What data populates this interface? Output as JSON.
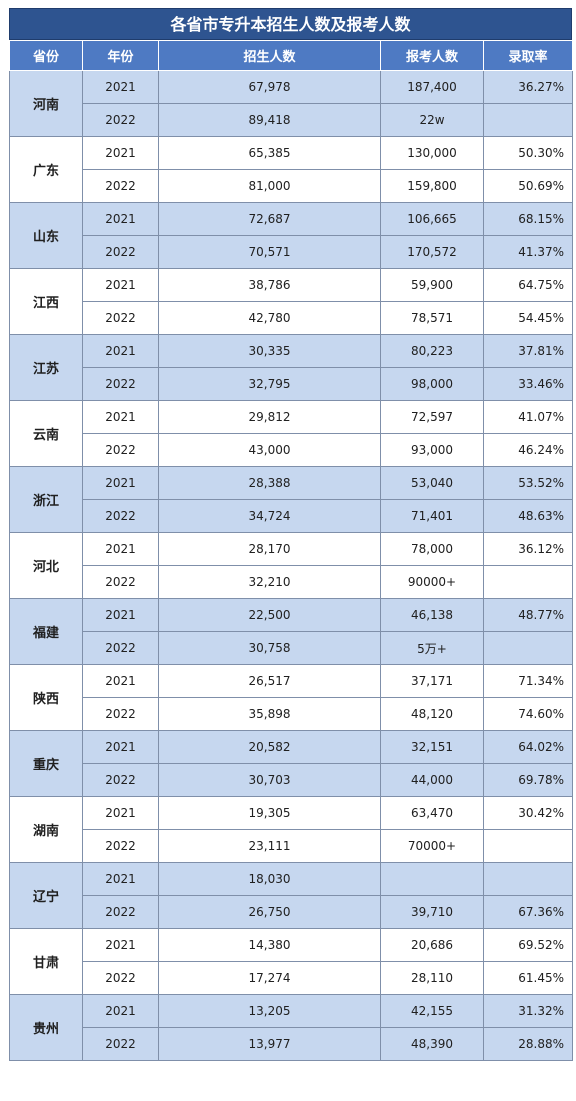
{
  "title": "各省市专升本招生人数及报考人数",
  "headers": [
    "省份",
    "年份",
    "招生人数",
    "报考人数",
    "录取率"
  ],
  "colors": {
    "title_bg": "#2e5490",
    "header_bg": "#4e7ac3",
    "shade_bg": "#c6d7ef"
  },
  "provinces": [
    {
      "name": "河南",
      "shaded": true,
      "rows": [
        {
          "year": "2021",
          "enrolled": "67,978",
          "applicants": "187,400",
          "rate": "36.27%"
        },
        {
          "year": "2022",
          "enrolled": "89,418",
          "applicants": "22w",
          "rate": ""
        }
      ]
    },
    {
      "name": "广东",
      "shaded": false,
      "rows": [
        {
          "year": "2021",
          "enrolled": "65,385",
          "applicants": "130,000",
          "rate": "50.30%"
        },
        {
          "year": "2022",
          "enrolled": "81,000",
          "applicants": "159,800",
          "rate": "50.69%"
        }
      ]
    },
    {
      "name": "山东",
      "shaded": true,
      "rows": [
        {
          "year": "2021",
          "enrolled": "72,687",
          "applicants": "106,665",
          "rate": "68.15%"
        },
        {
          "year": "2022",
          "enrolled": "70,571",
          "applicants": "170,572",
          "rate": "41.37%"
        }
      ]
    },
    {
      "name": "江西",
      "shaded": false,
      "rows": [
        {
          "year": "2021",
          "enrolled": "38,786",
          "applicants": "59,900",
          "rate": "64.75%"
        },
        {
          "year": "2022",
          "enrolled": "42,780",
          "applicants": "78,571",
          "rate": "54.45%"
        }
      ]
    },
    {
      "name": "江苏",
      "shaded": true,
      "rows": [
        {
          "year": "2021",
          "enrolled": "30,335",
          "applicants": "80,223",
          "rate": "37.81%"
        },
        {
          "year": "2022",
          "enrolled": "32,795",
          "applicants": "98,000",
          "rate": "33.46%"
        }
      ]
    },
    {
      "name": "云南",
      "shaded": false,
      "rows": [
        {
          "year": "2021",
          "enrolled": "29,812",
          "applicants": "72,597",
          "rate": "41.07%"
        },
        {
          "year": "2022",
          "enrolled": "43,000",
          "applicants": "93,000",
          "rate": "46.24%"
        }
      ]
    },
    {
      "name": "浙江",
      "shaded": true,
      "rows": [
        {
          "year": "2021",
          "enrolled": "28,388",
          "applicants": "53,040",
          "rate": "53.52%"
        },
        {
          "year": "2022",
          "enrolled": "34,724",
          "applicants": "71,401",
          "rate": "48.63%"
        }
      ]
    },
    {
      "name": "河北",
      "shaded": false,
      "rows": [
        {
          "year": "2021",
          "enrolled": "28,170",
          "applicants": "78,000",
          "rate": "36.12%"
        },
        {
          "year": "2022",
          "enrolled": "32,210",
          "applicants": "90000+",
          "rate": ""
        }
      ]
    },
    {
      "name": "福建",
      "shaded": true,
      "rows": [
        {
          "year": "2021",
          "enrolled": "22,500",
          "applicants": "46,138",
          "rate": "48.77%"
        },
        {
          "year": "2022",
          "enrolled": "30,758",
          "applicants": "5万+",
          "rate": ""
        }
      ]
    },
    {
      "name": "陕西",
      "shaded": false,
      "rows": [
        {
          "year": "2021",
          "enrolled": "26,517",
          "applicants": "37,171",
          "rate": "71.34%"
        },
        {
          "year": "2022",
          "enrolled": "35,898",
          "applicants": "48,120",
          "rate": "74.60%"
        }
      ]
    },
    {
      "name": "重庆",
      "shaded": true,
      "rows": [
        {
          "year": "2021",
          "enrolled": "20,582",
          "applicants": "32,151",
          "rate": "64.02%"
        },
        {
          "year": "2022",
          "enrolled": "30,703",
          "applicants": "44,000",
          "rate": "69.78%"
        }
      ]
    },
    {
      "name": "湖南",
      "shaded": false,
      "rows": [
        {
          "year": "2021",
          "enrolled": "19,305",
          "applicants": "63,470",
          "rate": "30.42%"
        },
        {
          "year": "2022",
          "enrolled": "23,111",
          "applicants": "70000+",
          "rate": ""
        }
      ]
    },
    {
      "name": "辽宁",
      "shaded": true,
      "rows": [
        {
          "year": "2021",
          "enrolled": "18,030",
          "applicants": "",
          "rate": ""
        },
        {
          "year": "2022",
          "enrolled": "26,750",
          "applicants": "39,710",
          "rate": "67.36%"
        }
      ]
    },
    {
      "name": "甘肃",
      "shaded": false,
      "rows": [
        {
          "year": "2021",
          "enrolled": "14,380",
          "applicants": "20,686",
          "rate": "69.52%"
        },
        {
          "year": "2022",
          "enrolled": "17,274",
          "applicants": "28,110",
          "rate": "61.45%"
        }
      ]
    },
    {
      "name": "贵州",
      "shaded": true,
      "rows": [
        {
          "year": "2021",
          "enrolled": "13,205",
          "applicants": "42,155",
          "rate": "31.32%"
        },
        {
          "year": "2022",
          "enrolled": "13,977",
          "applicants": "48,390",
          "rate": "28.88%"
        }
      ]
    }
  ]
}
